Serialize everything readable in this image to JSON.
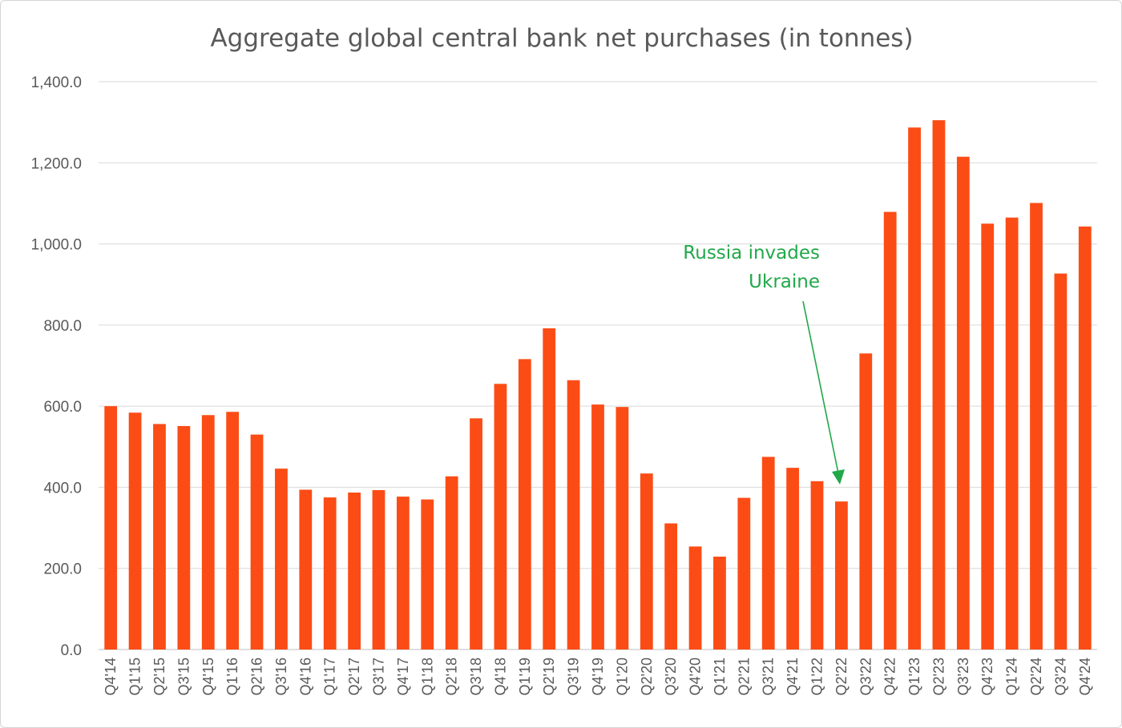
{
  "chart_data": {
    "type": "bar",
    "title": "Aggregate global central bank net purchases (in tonnes)",
    "xlabel": "",
    "ylabel": "",
    "ylim": [
      0,
      1400
    ],
    "yticks": [
      0,
      200,
      400,
      600,
      800,
      1000,
      1200,
      1400
    ],
    "ytick_labels": [
      "0.0",
      "200.0",
      "400.0",
      "600.0",
      "800.0",
      "1,000.0",
      "1,200.0",
      "1,400.0"
    ],
    "grid": "horizontal",
    "bar_color": "#FC4C16",
    "categories": [
      "Q4'14",
      "Q1'15",
      "Q2'15",
      "Q3'15",
      "Q4'15",
      "Q1'16",
      "Q2'16",
      "Q3'16",
      "Q4'16",
      "Q1'17",
      "Q2'17",
      "Q3'17",
      "Q4'17",
      "Q1'18",
      "Q2'18",
      "Q3'18",
      "Q4'18",
      "Q1'19",
      "Q2'19",
      "Q3'19",
      "Q4'19",
      "Q1'20",
      "Q2'20",
      "Q3'20",
      "Q4'20",
      "Q1'21",
      "Q2'21",
      "Q3'21",
      "Q4'21",
      "Q1'22",
      "Q2'22",
      "Q3'22",
      "Q4'22",
      "Q1'23",
      "Q2'23",
      "Q3'23",
      "Q4'23",
      "Q1'24",
      "Q2'24",
      "Q3'24",
      "Q4'24"
    ],
    "values": [
      600,
      584,
      556,
      551,
      578,
      586,
      530,
      446,
      394,
      375,
      387,
      393,
      377,
      370,
      427,
      570,
      655,
      716,
      792,
      664,
      604,
      598,
      434,
      311,
      254,
      229,
      374,
      475,
      448,
      415,
      365,
      730,
      1079,
      1287,
      1305,
      1215,
      1050,
      1065,
      1101,
      927,
      1043
    ],
    "annotation": {
      "text_lines": [
        "Russia invades",
        "Ukraine"
      ],
      "target_category": "Q2'22",
      "color": "#21A849"
    }
  }
}
